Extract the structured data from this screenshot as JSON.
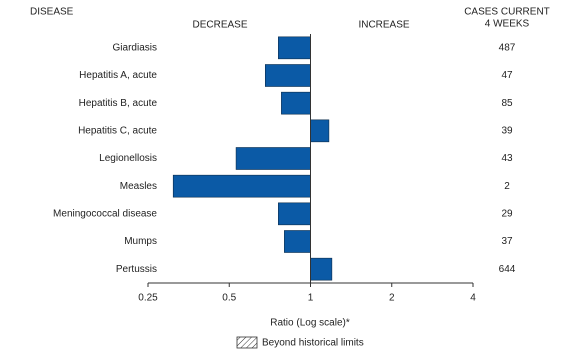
{
  "chart_data": {
    "type": "bar",
    "orientation": "horizontal",
    "log_scale": true,
    "disease_header": "DISEASE",
    "decrease_label": "DECREASE",
    "increase_label": "INCREASE",
    "cases_header": [
      "CASES CURRENT",
      "4 WEEKS"
    ],
    "categories": [
      "Giardiasis",
      "Hepatitis A, acute",
      "Hepatitis B, acute",
      "Hepatitis C, acute",
      "Legionellosis",
      "Measles",
      "Meningococcal disease",
      "Mumps",
      "Pertussis"
    ],
    "values": [
      0.76,
      0.68,
      0.78,
      1.17,
      0.53,
      0.31,
      0.76,
      0.8,
      1.2
    ],
    "cases": [
      487,
      47,
      85,
      39,
      43,
      2,
      29,
      37,
      644
    ],
    "color": "#0b5aa6",
    "baseline": 1,
    "xlim": [
      0.25,
      4
    ],
    "xticks": [
      0.25,
      0.5,
      1,
      2,
      4
    ],
    "xlabel": "Ratio (Log scale)*",
    "legend": "Beyond historical limits"
  }
}
